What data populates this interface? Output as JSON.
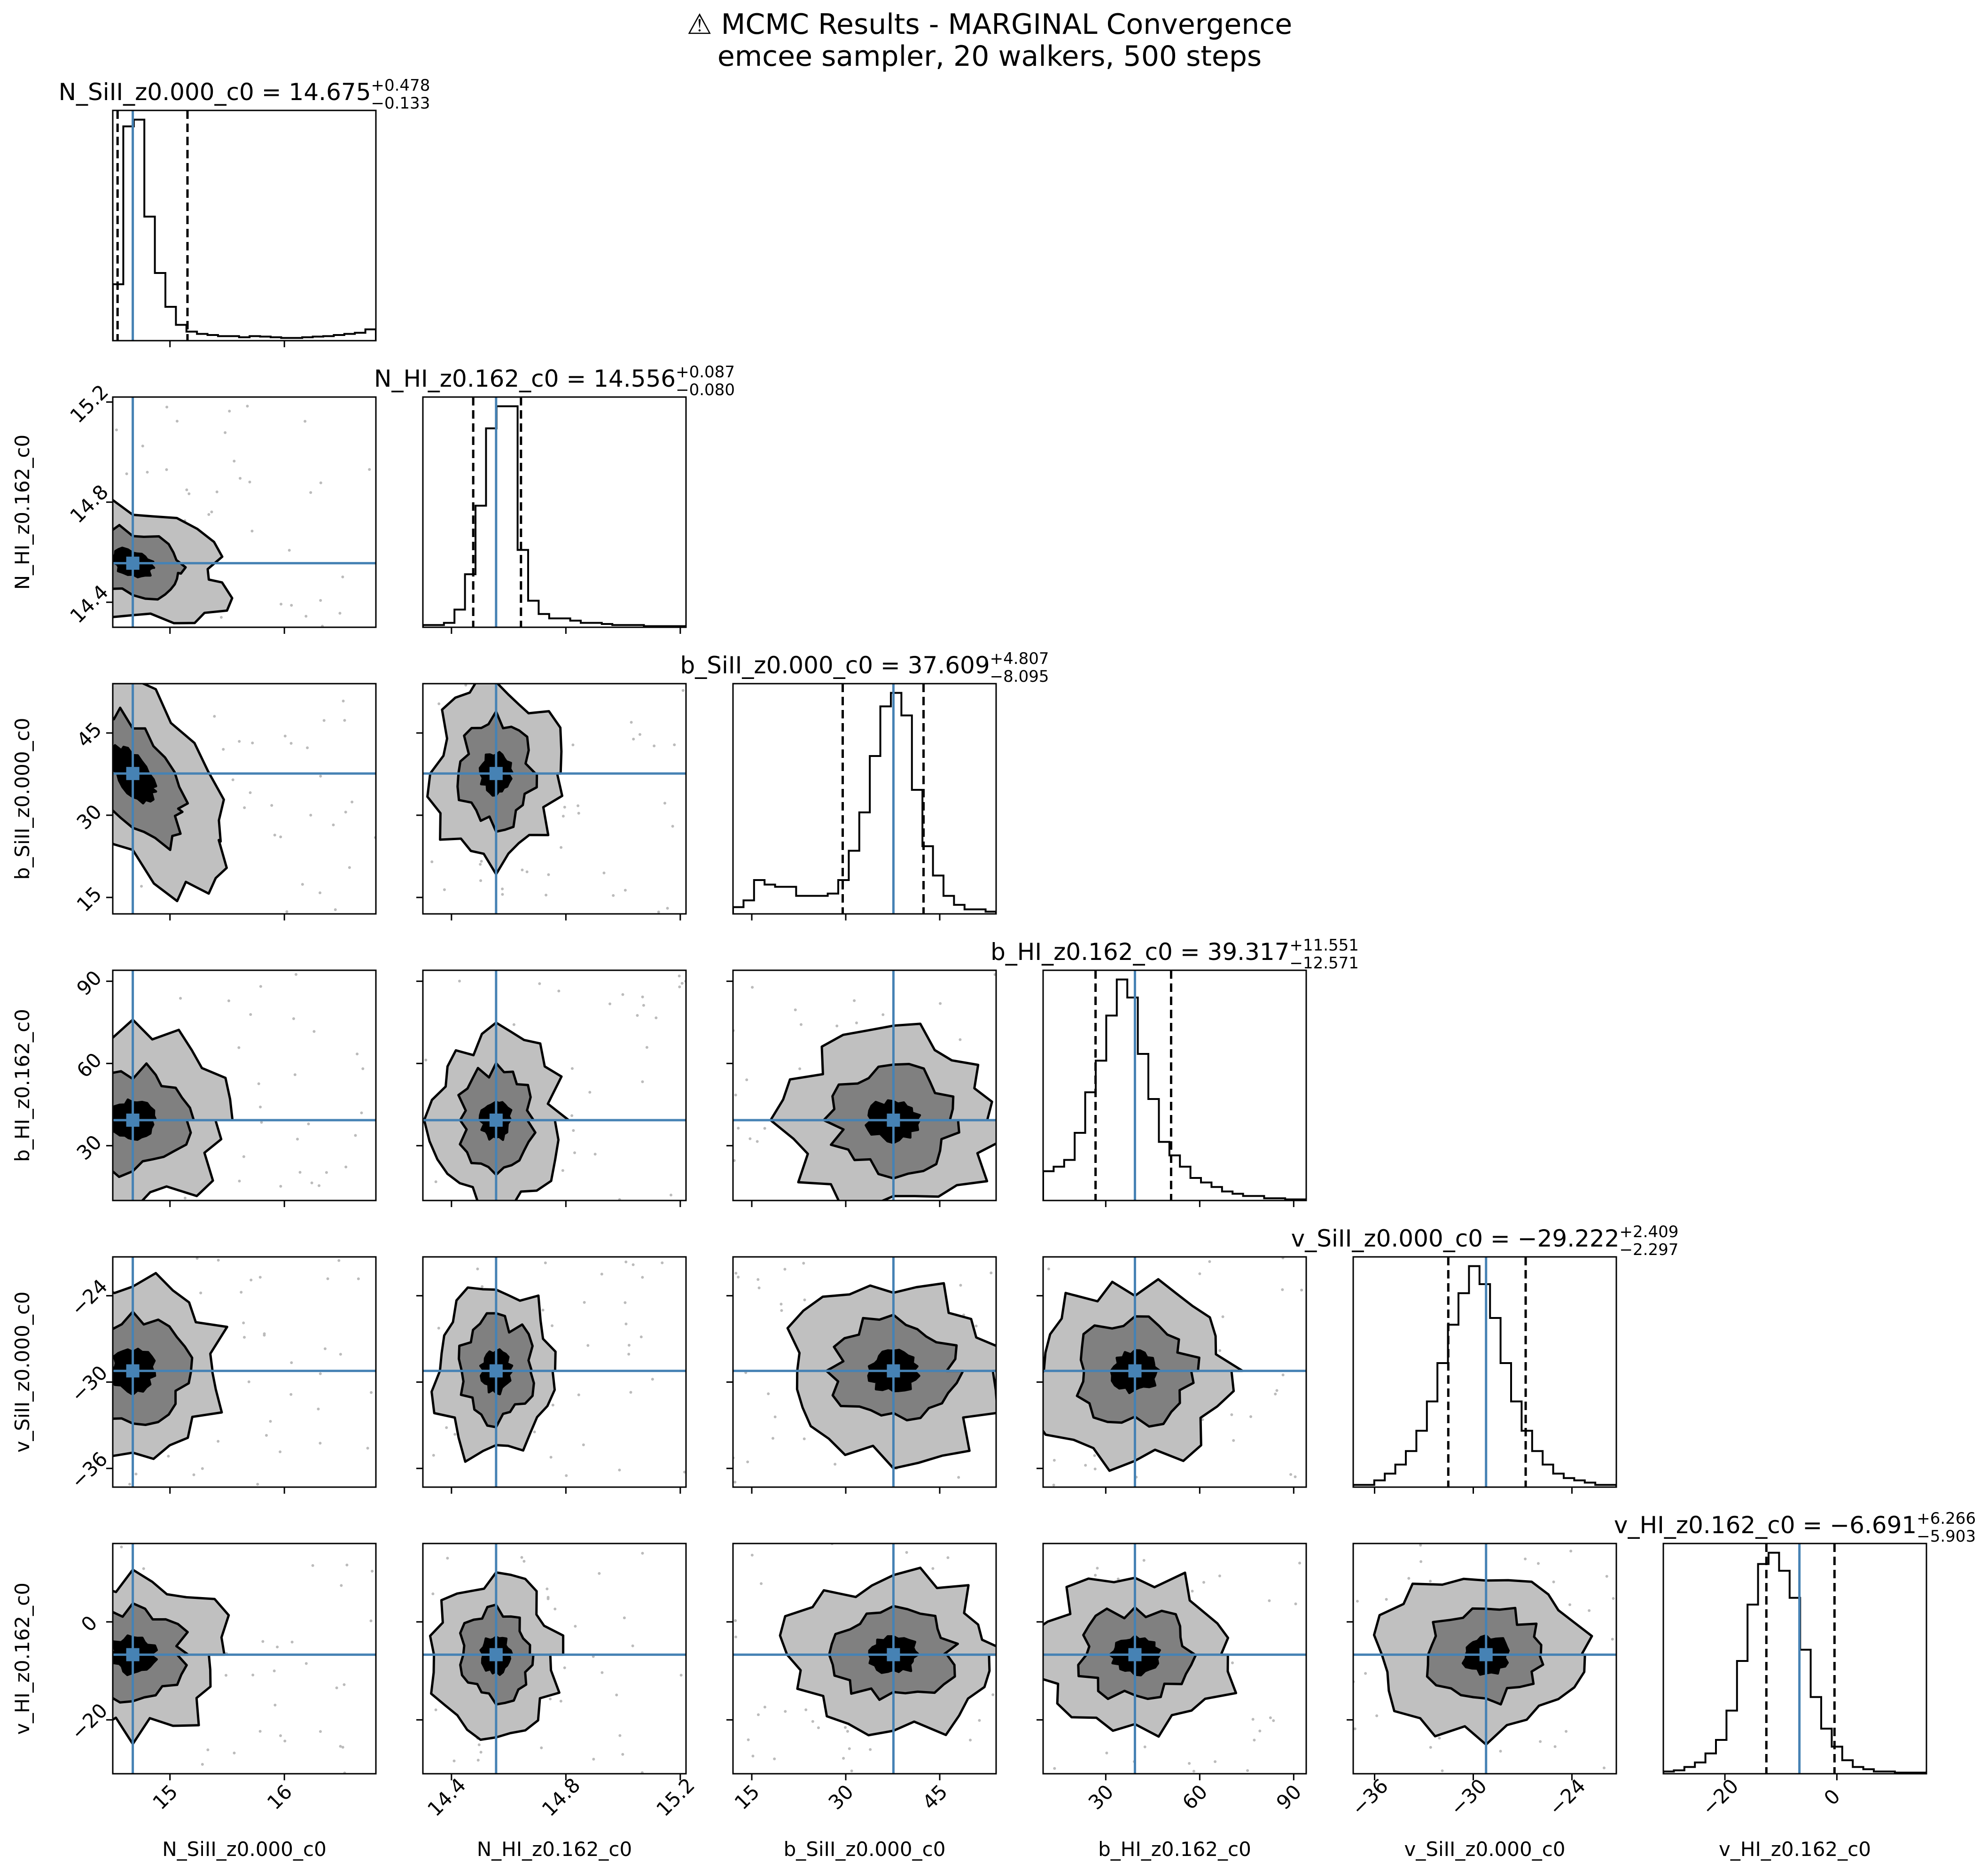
{
  "figure": {
    "title_line1": "⚠ MCMC Results - MARGINAL Convergence",
    "title_line2": "emcee sampler, 20 walkers, 500 steps"
  },
  "colors": {
    "truth": "#4682b4",
    "contour_outer": "#c0c0c0",
    "contour_mid": "#808080",
    "contour_inner": "#000000",
    "line": "#000000"
  },
  "chart_data": {
    "type": "corner",
    "parameters": [
      {
        "name": "N_SiII_z0.000_c0",
        "axis_label": "N_SiII_z0.000_c0",
        "title_main": "N_SiII_z0.000_c0 = 14.675",
        "err_plus": "+0.478",
        "err_minus": "−0.133",
        "median": 14.675,
        "q16": 14.542,
        "q84": 15.153,
        "range": [
          14.5,
          16.8
        ],
        "ticks": [
          15,
          16
        ],
        "tick_labels": [
          "15",
          "16"
        ],
        "hist": [
          0.25,
          0.95,
          0.98,
          0.55,
          0.3,
          0.15,
          0.07,
          0.04,
          0.03,
          0.025,
          0.02,
          0.02,
          0.015,
          0.02,
          0.018,
          0.015,
          0.012,
          0.012,
          0.015,
          0.018,
          0.02,
          0.025,
          0.03,
          0.035,
          0.05
        ]
      },
      {
        "name": "N_HI_z0.162_c0",
        "axis_label": "N_HI_z0.162_c0",
        "title_main": "N_HI_z0.162_c0 = 14.556",
        "err_plus": "+0.087",
        "err_minus": "−0.080",
        "median": 14.556,
        "q16": 14.476,
        "q84": 14.643,
        "range": [
          14.3,
          15.22
        ],
        "ticks": [
          14.4,
          14.8,
          15.2
        ],
        "tick_labels": [
          "14.4",
          "14.8",
          "15.2"
        ],
        "hist": [
          0.01,
          0.01,
          0.02,
          0.08,
          0.24,
          0.55,
          0.9,
          1.0,
          1.0,
          0.35,
          0.12,
          0.06,
          0.04,
          0.04,
          0.03,
          0.02,
          0.02,
          0.015,
          0.01,
          0.01,
          0.01,
          0.005,
          0.005,
          0.005,
          0.005
        ]
      },
      {
        "name": "b_SiII_z0.000_c0",
        "axis_label": "b_SiII_z0.000_c0",
        "title_main": "b_SiII_z0.000_c0 = 37.609",
        "err_plus": "+4.807",
        "err_minus": "−8.095",
        "median": 37.609,
        "q16": 29.514,
        "q84": 42.416,
        "range": [
          12,
          54
        ],
        "ticks": [
          15,
          30,
          45
        ],
        "tick_labels": [
          "15",
          "30",
          "45"
        ],
        "hist": [
          0.03,
          0.06,
          0.15,
          0.13,
          0.12,
          0.12,
          0.08,
          0.08,
          0.08,
          0.09,
          0.15,
          0.28,
          0.45,
          0.7,
          0.92,
          0.98,
          0.88,
          0.55,
          0.3,
          0.17,
          0.08,
          0.04,
          0.02,
          0.02,
          0.01
        ]
      },
      {
        "name": "b_HI_z0.162_c0",
        "axis_label": "b_HI_z0.162_c0",
        "title_main": "b_HI_z0.162_c0 = 39.317",
        "err_plus": "+11.551",
        "err_minus": "−12.571",
        "median": 39.317,
        "q16": 26.746,
        "q84": 50.868,
        "range": [
          10,
          94
        ],
        "ticks": [
          30,
          60,
          90
        ],
        "tick_labels": [
          "30",
          "60",
          "90"
        ],
        "hist": [
          0.13,
          0.15,
          0.18,
          0.3,
          0.48,
          0.62,
          0.82,
          0.98,
          0.9,
          0.65,
          0.45,
          0.26,
          0.2,
          0.15,
          0.1,
          0.08,
          0.06,
          0.04,
          0.03,
          0.02,
          0.02,
          0.01,
          0.01,
          0.005,
          0.005
        ]
      },
      {
        "name": "v_SiII_z0.000_c0",
        "axis_label": "v_SiII_z0.000_c0",
        "title_main": "v_SiII_z0.000_c0 = −29.222",
        "err_plus": "+2.409",
        "err_minus": "−2.297",
        "median": -29.222,
        "q16": -31.519,
        "q84": -26.813,
        "range": [
          -37.3,
          -21.3
        ],
        "ticks": [
          -36,
          -30,
          -24
        ],
        "tick_labels": [
          "−36",
          "−30",
          "−24"
        ],
        "hist": [
          0.01,
          0.01,
          0.03,
          0.06,
          0.1,
          0.16,
          0.25,
          0.38,
          0.55,
          0.72,
          0.86,
          0.98,
          0.9,
          0.75,
          0.55,
          0.38,
          0.25,
          0.16,
          0.1,
          0.06,
          0.04,
          0.03,
          0.02,
          0.01,
          0.01
        ]
      },
      {
        "name": "v_HI_z0.162_c0",
        "axis_label": "v_HI_z0.162_c0",
        "title_main": "v_HI_z0.162_c0 = −6.691",
        "err_plus": "+6.266",
        "err_minus": "−5.903",
        "median": -6.691,
        "q16": -12.594,
        "q84": -0.425,
        "range": [
          -31,
          16
        ],
        "ticks": [
          -20,
          0
        ],
        "tick_labels": [
          "−20",
          "0"
        ],
        "hist": [
          0.01,
          0.015,
          0.03,
          0.05,
          0.09,
          0.15,
          0.28,
          0.5,
          0.75,
          0.93,
          0.98,
          0.9,
          0.78,
          0.55,
          0.34,
          0.2,
          0.12,
          0.06,
          0.03,
          0.02,
          0.01,
          0.01,
          0.005,
          0.005,
          0.005
        ]
      }
    ]
  }
}
